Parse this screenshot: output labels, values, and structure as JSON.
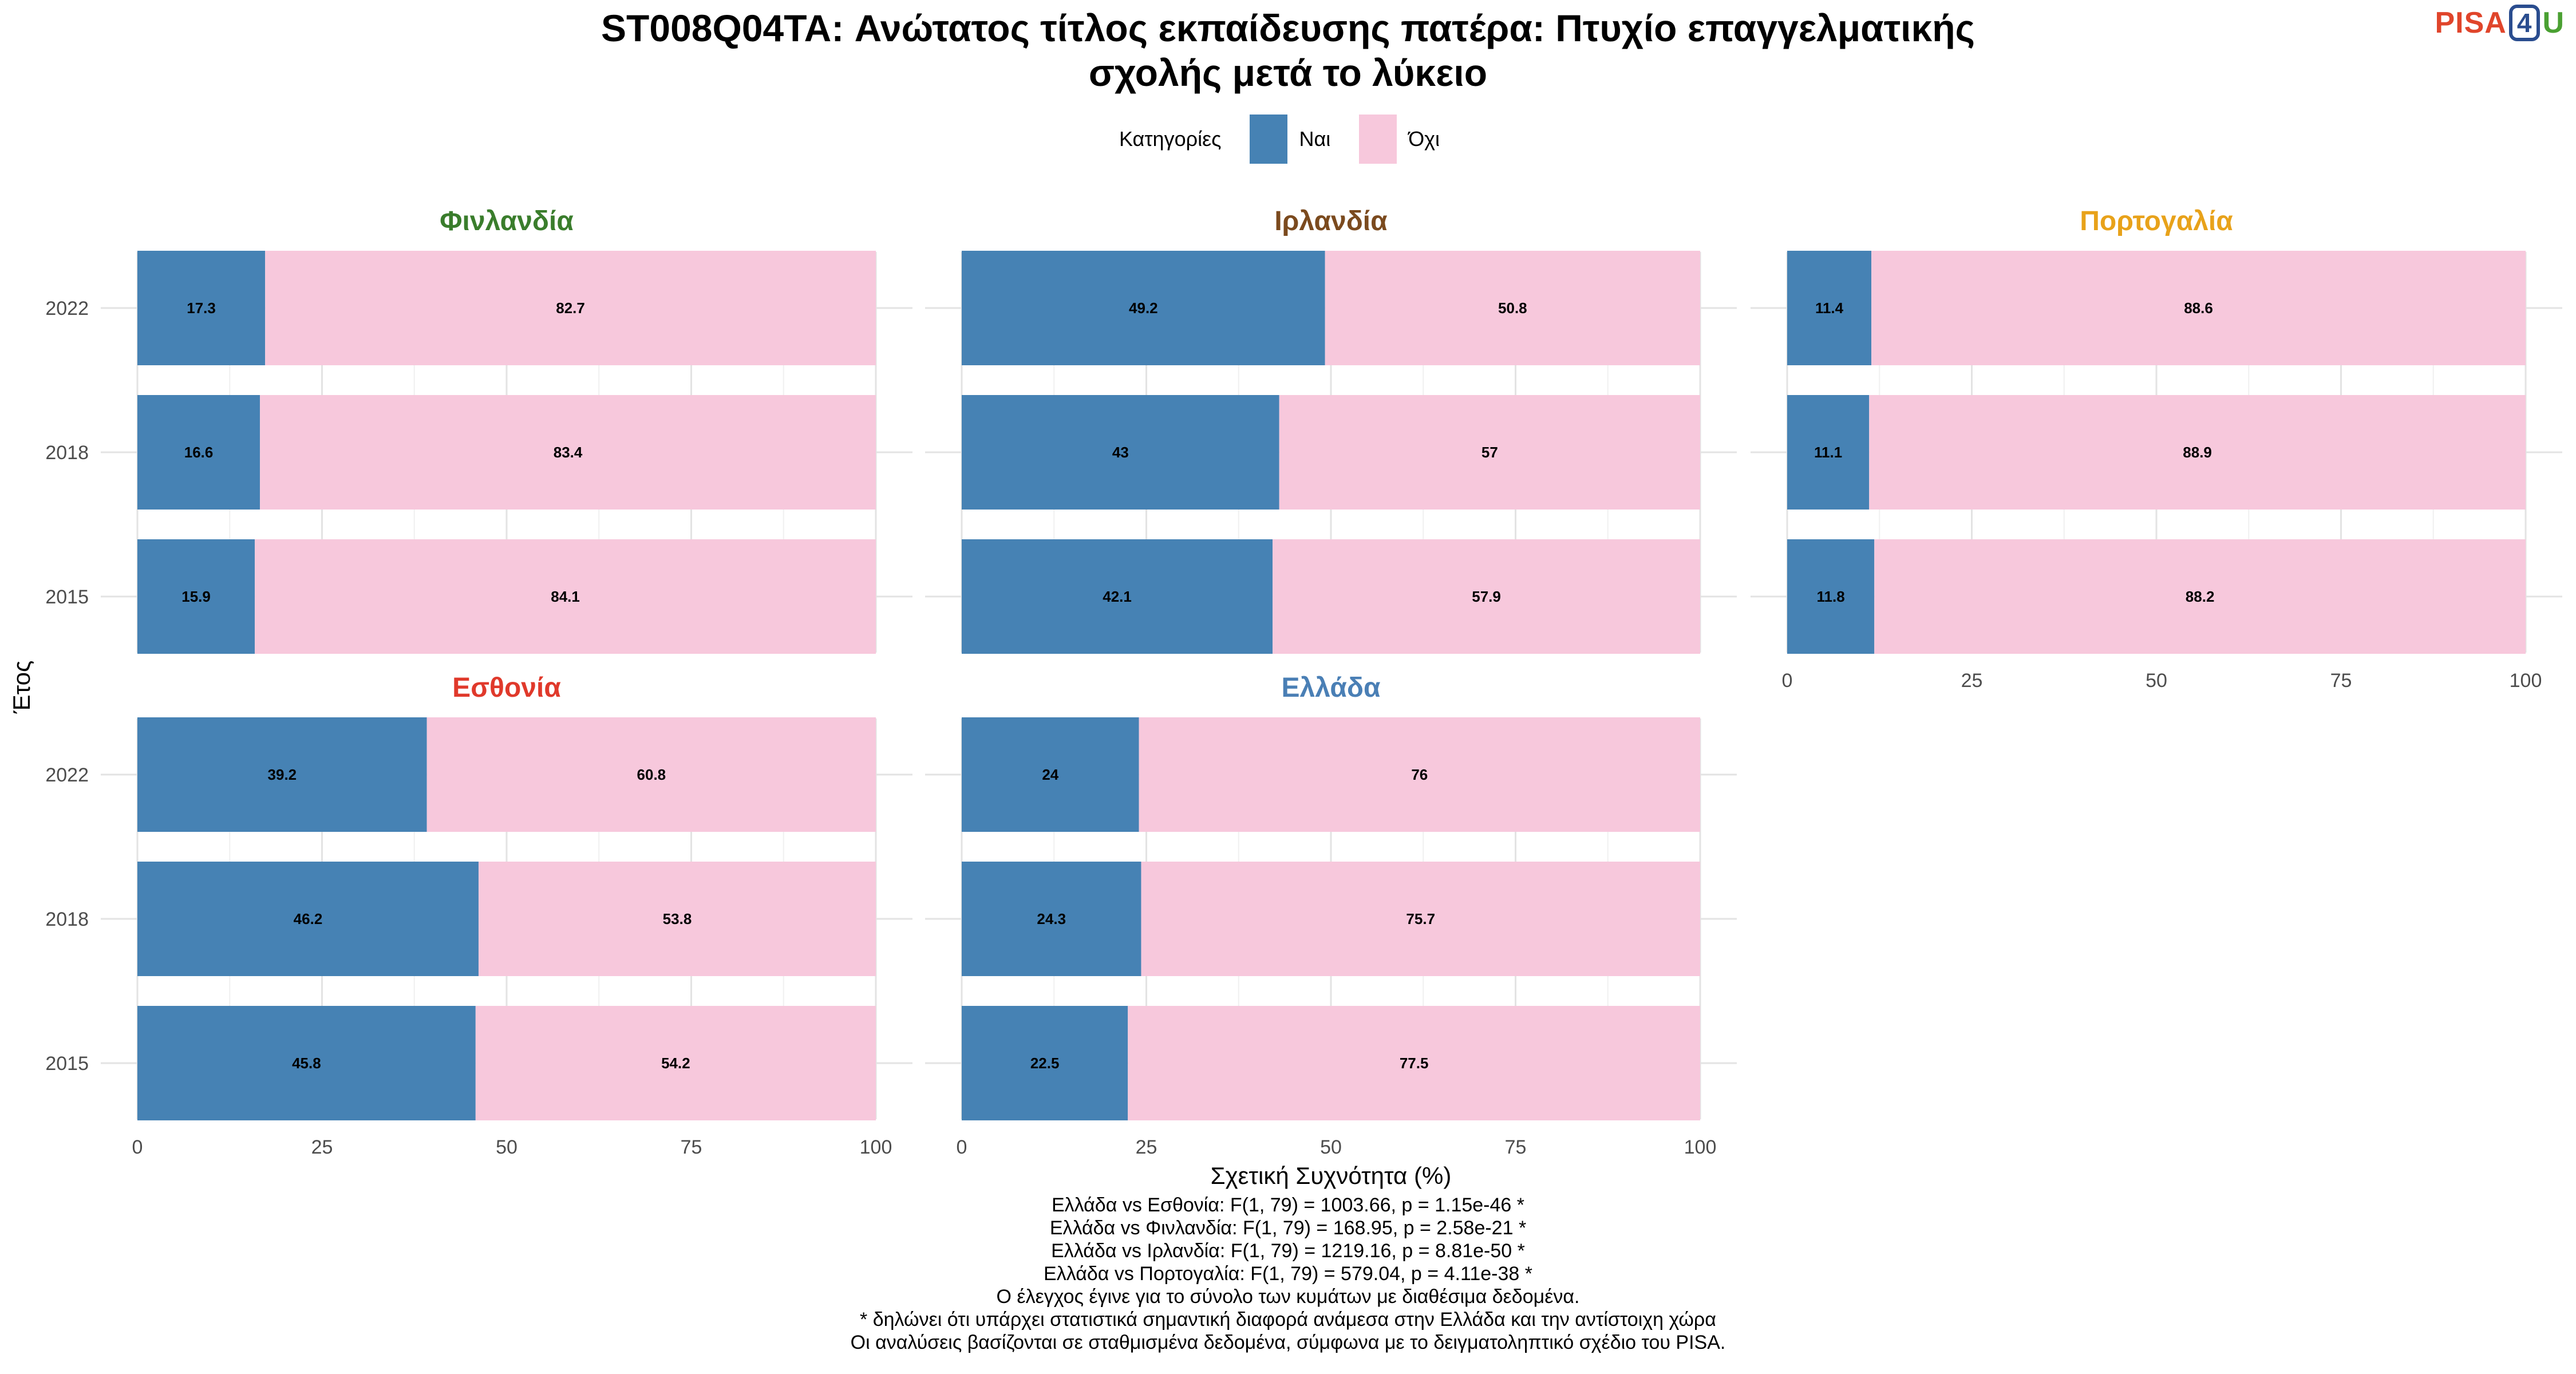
{
  "title_lines": [
    "ST008Q04TA: Ανώτατος τίτλος εκπαίδευσης πατέρα: Πτυχίο επαγγελματικής",
    "σχολής μετά το λύκειο"
  ],
  "logo": {
    "part1": "PISA",
    "part2": "4",
    "part3": "U"
  },
  "legend": {
    "title": "Κατηγορίες",
    "items": [
      {
        "label": "Ναι",
        "color": "#4682b4"
      },
      {
        "label": "Όχι",
        "color": "#f7c8dc"
      }
    ]
  },
  "chart_data": {
    "type": "bar",
    "orientation": "horizontal",
    "stacked": true,
    "xlabel": "Σχετική Συχνότητα (%)",
    "ylabel": "Έτος",
    "xlim": [
      0,
      100
    ],
    "xticks": [
      0,
      25,
      50,
      75,
      100
    ],
    "categories": [
      "2022",
      "2018",
      "2015"
    ],
    "series_colors": {
      "Ναι": "#4682b4",
      "Όχι": "#f7c8dc"
    },
    "panels": [
      {
        "country": "Φινλανδία",
        "color": "#3a7d2c",
        "yes": [
          17.3,
          16.6,
          15.9
        ],
        "no": [
          82.7,
          83.4,
          84.1
        ]
      },
      {
        "country": "Ιρλανδία",
        "color": "#7b4a1e",
        "yes": [
          49.2,
          43,
          42.1
        ],
        "no": [
          50.8,
          57,
          57.9
        ]
      },
      {
        "country": "Πορτογαλία",
        "color": "#e8a21a",
        "yes": [
          11.4,
          11.1,
          11.8
        ],
        "no": [
          88.6,
          88.9,
          88.2
        ]
      },
      {
        "country": "Εσθονία",
        "color": "#e0392b",
        "yes": [
          39.2,
          46.2,
          45.8
        ],
        "no": [
          60.8,
          53.8,
          54.2
        ]
      },
      {
        "country": "Ελλάδα",
        "color": "#4a7fb5",
        "yes": [
          24,
          24.3,
          22.5
        ],
        "no": [
          76,
          75.7,
          77.5
        ]
      }
    ]
  },
  "footnotes": [
    "Ελλάδα vs Εσθονία: F(1, 79) = 1003.66, p = 1.15e-46 *",
    "Ελλάδα vs Φινλανδία: F(1, 79) = 168.95, p = 2.58e-21 *",
    "Ελλάδα vs Ιρλανδία: F(1, 79) = 1219.16, p = 8.81e-50 *",
    "Ελλάδα vs Πορτογαλία: F(1, 79) = 579.04, p = 4.11e-38 *",
    "Ο έλεγχος έγινε για το σύνολο των κυμάτων με διαθέσιμα δεδομένα.",
    "* δηλώνει ότι υπάρχει στατιστικά σημαντική διαφορά ανάμεσα στην Ελλάδα και την αντίστοιχη χώρα",
    "Οι αναλύσεις βασίζονται σε σταθμισμένα δεδομένα, σύμφωνα με το δειγματοληπτικό σχέδιο του PISA."
  ]
}
